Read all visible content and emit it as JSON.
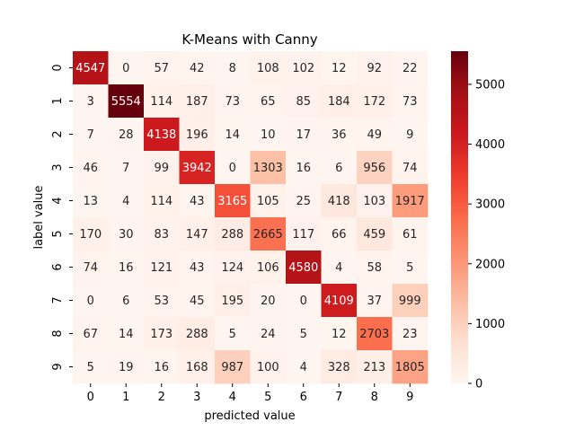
{
  "chart_data": {
    "type": "heatmap",
    "title": "K-Means with Canny",
    "xlabel": "predicted value",
    "ylabel": "label value",
    "x_categories": [
      "0",
      "1",
      "2",
      "3",
      "4",
      "5",
      "6",
      "7",
      "8",
      "9"
    ],
    "y_categories": [
      "0",
      "1",
      "2",
      "3",
      "4",
      "5",
      "6",
      "7",
      "8",
      "9"
    ],
    "values": [
      [
        4547,
        0,
        57,
        42,
        8,
        108,
        102,
        12,
        92,
        22
      ],
      [
        3,
        5554,
        114,
        187,
        73,
        65,
        85,
        184,
        172,
        73
      ],
      [
        7,
        28,
        4138,
        196,
        14,
        10,
        17,
        36,
        49,
        9
      ],
      [
        46,
        7,
        99,
        3942,
        0,
        1303,
        16,
        6,
        956,
        74
      ],
      [
        13,
        4,
        114,
        43,
        3165,
        105,
        25,
        418,
        103,
        1917
      ],
      [
        170,
        30,
        83,
        147,
        288,
        2665,
        117,
        66,
        459,
        61
      ],
      [
        74,
        16,
        121,
        43,
        124,
        106,
        4580,
        4,
        58,
        5
      ],
      [
        0,
        6,
        53,
        45,
        195,
        20,
        0,
        4109,
        37,
        999
      ],
      [
        67,
        14,
        173,
        288,
        5,
        24,
        5,
        12,
        2703,
        23
      ],
      [
        5,
        19,
        16,
        168,
        987,
        100,
        4,
        328,
        213,
        1805
      ]
    ],
    "colormap": "Reds",
    "vmin": 0,
    "vmax": 5554,
    "colorbar_ticks": [
      "0",
      "1000",
      "2000",
      "3000",
      "4000",
      "5000"
    ],
    "colorbar_tick_values": [
      0,
      1000,
      2000,
      3000,
      4000,
      5000
    ],
    "grid": false
  }
}
